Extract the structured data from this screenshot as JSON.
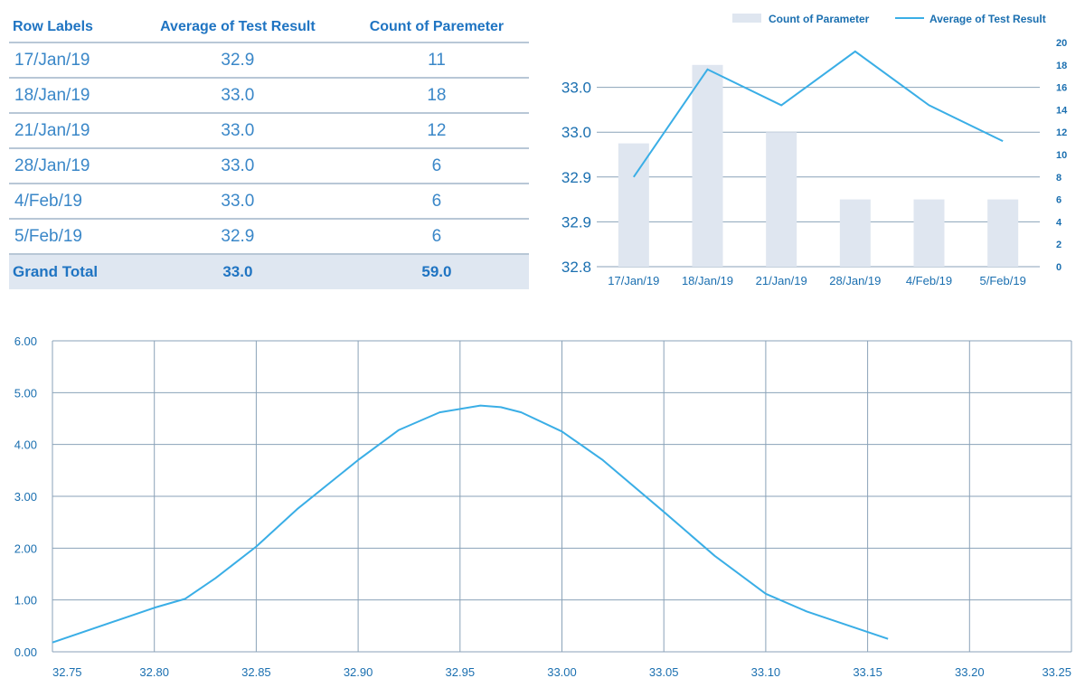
{
  "table": {
    "headers": [
      "Row Labels",
      "Average of Test Result",
      "Count of Paremeter"
    ],
    "rows": [
      {
        "label": "17/Jan/19",
        "avg": "32.9",
        "count": "11"
      },
      {
        "label": "18/Jan/19",
        "avg": "33.0",
        "count": "18"
      },
      {
        "label": "21/Jan/19",
        "avg": "33.0",
        "count": "12"
      },
      {
        "label": "28/Jan/19",
        "avg": "33.0",
        "count": "6"
      },
      {
        "label": "4/Feb/19",
        "avg": "33.0",
        "count": "6"
      },
      {
        "label": "5/Feb/19",
        "avg": "32.9",
        "count": "6"
      }
    ],
    "total": {
      "label": "Grand Total",
      "avg": "33.0",
      "count": "59.0"
    }
  },
  "colors": {
    "line": "#3aaee6",
    "bar": "#dfe6f0",
    "grid": "#8aa2b8",
    "text": "#1a6fb0"
  },
  "chart_data": [
    {
      "type": "bar+line",
      "title": "",
      "categories": [
        "17/Jan/19",
        "18/Jan/19",
        "21/Jan/19",
        "28/Jan/19",
        "4/Feb/19",
        "5/Feb/19"
      ],
      "legend": [
        "Count of Parameter",
        "Average of Test Result"
      ],
      "legend_position": "top-right",
      "bars": {
        "name": "Count of Parameter",
        "axis": "right",
        "values": [
          11,
          18,
          12,
          6,
          6,
          6
        ]
      },
      "line": {
        "name": "Average of Test Result",
        "axis": "left",
        "values": [
          32.9,
          33.02,
          32.98,
          33.04,
          32.98,
          32.94
        ]
      },
      "left_axis": {
        "ylim": [
          32.8,
          33.05
        ],
        "ticks": [
          32.8,
          32.85,
          32.9,
          32.95,
          33.0
        ],
        "tick_labels": [
          "32.8",
          "32.9",
          "32.9",
          "33.0",
          "33.0"
        ]
      },
      "right_axis": {
        "ylim": [
          0,
          20
        ],
        "ticks": [
          0,
          2,
          4,
          6,
          8,
          10,
          12,
          14,
          16,
          18,
          20
        ],
        "tick_labels": [
          "0",
          "2",
          "4",
          "6",
          "8",
          "10",
          "12",
          "14",
          "16",
          "18",
          "20"
        ]
      }
    },
    {
      "type": "line",
      "title": "",
      "xlim": [
        32.75,
        33.25
      ],
      "ylim": [
        0,
        6
      ],
      "x_ticks": [
        32.75,
        32.8,
        32.85,
        32.9,
        32.95,
        33.0,
        33.05,
        33.1,
        33.15,
        33.2,
        33.25
      ],
      "x_tick_labels": [
        "32.75",
        "32.80",
        "32.85",
        "32.90",
        "32.95",
        "33.00",
        "33.05",
        "33.10",
        "33.15",
        "33.20",
        "33.25"
      ],
      "y_ticks": [
        0,
        1,
        2,
        3,
        4,
        5,
        6
      ],
      "y_tick_labels": [
        "0.00",
        "1.00",
        "2.00",
        "3.00",
        "4.00",
        "5.00",
        "6.00"
      ],
      "grid": true,
      "x": [
        32.75,
        32.8,
        32.815,
        32.83,
        32.85,
        32.87,
        32.9,
        32.92,
        32.94,
        32.96,
        32.97,
        32.98,
        33.0,
        33.02,
        33.05,
        33.075,
        33.1,
        33.12,
        33.16
      ],
      "y": [
        0.18,
        0.85,
        1.02,
        1.42,
        2.03,
        2.75,
        3.7,
        4.28,
        4.62,
        4.75,
        4.72,
        4.62,
        4.25,
        3.7,
        2.7,
        1.85,
        1.12,
        0.78,
        0.25
      ]
    }
  ]
}
